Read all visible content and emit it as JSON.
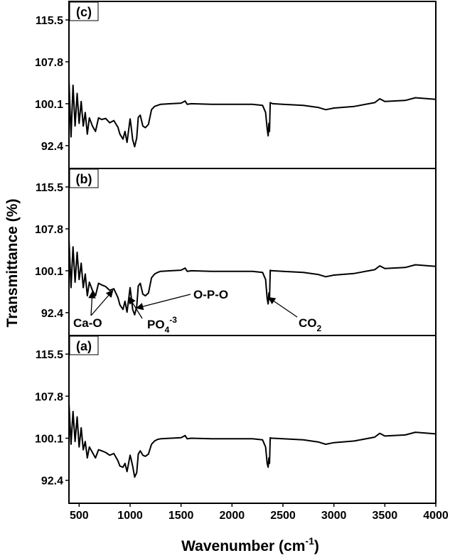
{
  "chart_data": {
    "type": "line",
    "xlabel": "Wavenumber (cm",
    "xlabel_sup": "-1",
    "xlabel_tail": ")",
    "ylabel": "Transmittance (%)",
    "xlim": [
      400,
      4000
    ],
    "x_ticks": [
      500,
      1000,
      1500,
      2000,
      2500,
      3000,
      3500,
      4000
    ],
    "x_tick_labels": [
      "500",
      "1000",
      "1500",
      "2000",
      "2500",
      "3000",
      "3500",
      "4000"
    ],
    "ylim": [
      88.2,
      118.9
    ],
    "y_ticks": [
      92.4,
      100.1,
      107.8,
      115.5
    ],
    "y_tick_labels": [
      "92.4",
      "100.1",
      "107.8",
      "115.5"
    ],
    "grid": false,
    "panels": [
      {
        "label": "(c)",
        "series": [
          {
            "x": [
              400,
              420,
              440,
              460,
              480,
              500,
              520,
              540,
              560,
              580,
              600,
              630,
              660,
              690,
              720,
              760,
              800,
              840,
              880,
              900,
              930,
              950,
              970,
              1000,
              1010,
              1025,
              1045,
              1065,
              1080,
              1100,
              1125,
              1150,
              1180,
              1210,
              1240,
              1270,
              1300,
              1400,
              1500,
              1540,
              1560,
              1600,
              1800,
              2000,
              2200,
              2300,
              2330,
              2345,
              2355,
              2362,
              2368,
              2375,
              2385,
              2400,
              2500,
              2700,
              2850,
              2920,
              3000,
              3200,
              3400,
              3450,
              3500,
              3700,
              3800,
              4000
            ],
            "y": [
              104.5,
              94.0,
              103.5,
              96.0,
              102.0,
              96.5,
              100.5,
              96.0,
              98.5,
              94.5,
              97.5,
              96.0,
              95.0,
              97.5,
              97.2,
              97.4,
              96.6,
              97.0,
              95.8,
              94.5,
              93.6,
              95.0,
              93.0,
              97.3,
              96.0,
              93.5,
              92.2,
              93.8,
              97.6,
              98.0,
              96.0,
              95.7,
              96.3,
              99.0,
              99.6,
              99.8,
              100.0,
              100.1,
              100.2,
              100.6,
              100.0,
              100.1,
              100.0,
              100.0,
              100.0,
              99.8,
              98.5,
              95.5,
              94.2,
              96.5,
              95.0,
              100.3,
              100.2,
              100.1,
              100.0,
              99.8,
              99.4,
              99.0,
              99.3,
              99.6,
              100.3,
              101.0,
              100.5,
              100.7,
              101.2,
              100.9
            ]
          }
        ]
      },
      {
        "label": "(b)",
        "series": [
          {
            "x": [
              400,
              420,
              440,
              460,
              480,
              500,
              520,
              540,
              560,
              580,
              600,
              630,
              660,
              690,
              720,
              760,
              800,
              840,
              880,
              900,
              930,
              950,
              970,
              1000,
              1010,
              1025,
              1045,
              1065,
              1080,
              1100,
              1125,
              1150,
              1180,
              1210,
              1240,
              1270,
              1300,
              1400,
              1500,
              1540,
              1560,
              1600,
              1800,
              2000,
              2200,
              2300,
              2330,
              2345,
              2355,
              2362,
              2368,
              2375,
              2385,
              2400,
              2500,
              2700,
              2850,
              2920,
              3000,
              3200,
              3400,
              3450,
              3500,
              3700,
              3800,
              4000
            ],
            "y": [
              106.0,
              97.0,
              104.5,
              98.0,
              103.5,
              98.5,
              101.5,
              97.0,
              99.5,
              95.5,
              98.0,
              96.5,
              95.5,
              97.8,
              97.5,
              97.2,
              96.5,
              96.8,
              95.2,
              93.8,
              93.0,
              94.5,
              92.5,
              97.0,
              95.5,
              93.0,
              92.0,
              93.5,
              97.3,
              97.8,
              95.8,
              95.5,
              96.0,
              98.8,
              99.5,
              99.8,
              100.0,
              100.1,
              100.2,
              100.6,
              100.0,
              100.1,
              100.0,
              100.0,
              100.0,
              99.8,
              98.5,
              95.0,
              94.0,
              96.0,
              94.8,
              100.2,
              100.1,
              100.1,
              100.0,
              99.8,
              99.4,
              99.0,
              99.3,
              99.6,
              100.3,
              101.0,
              100.5,
              100.7,
              101.2,
              100.9
            ]
          }
        ]
      },
      {
        "label": "(a)",
        "series": [
          {
            "x": [
              400,
              420,
              440,
              460,
              480,
              500,
              520,
              540,
              560,
              580,
              600,
              630,
              660,
              690,
              720,
              760,
              800,
              840,
              880,
              900,
              930,
              950,
              970,
              1000,
              1010,
              1025,
              1045,
              1065,
              1080,
              1100,
              1125,
              1150,
              1180,
              1210,
              1240,
              1270,
              1300,
              1400,
              1500,
              1540,
              1560,
              1600,
              1800,
              2000,
              2200,
              2300,
              2330,
              2345,
              2355,
              2362,
              2368,
              2375,
              2385,
              2400,
              2500,
              2700,
              2850,
              2920,
              3000,
              3200,
              3400,
              3450,
              3500,
              3700,
              3800,
              4000
            ],
            "y": [
              106.5,
              99.0,
              105.0,
              99.5,
              104.0,
              98.5,
              102.0,
              98.0,
              99.5,
              96.5,
              98.5,
              97.5,
              96.5,
              98.0,
              97.8,
              97.5,
              97.0,
              97.3,
              96.0,
              95.0,
              94.8,
              95.5,
              94.0,
              97.0,
              96.3,
              95.0,
              93.0,
              93.8,
              97.2,
              97.8,
              97.0,
              96.8,
              97.2,
              99.0,
              99.6,
              99.9,
              100.0,
              100.1,
              100.2,
              100.6,
              100.0,
              100.1,
              100.0,
              100.0,
              100.0,
              99.8,
              98.5,
              95.5,
              94.8,
              96.5,
              95.5,
              100.2,
              100.1,
              100.1,
              100.0,
              99.8,
              99.4,
              99.0,
              99.3,
              99.6,
              100.3,
              101.0,
              100.5,
              100.7,
              101.2,
              100.9
            ]
          }
        ]
      }
    ],
    "annotations": [
      {
        "panel": 1,
        "text": "Ca-O",
        "targets": [
          630,
          830
        ]
      },
      {
        "panel": 1,
        "text": "PO",
        "sub": "4",
        "sup": "-3",
        "targets": [
          990
        ]
      },
      {
        "panel": 1,
        "text": "O-P-O",
        "targets": [
          1065
        ]
      },
      {
        "panel": 1,
        "text": "CO",
        "sub": "2",
        "targets": [
          2360
        ]
      }
    ]
  }
}
